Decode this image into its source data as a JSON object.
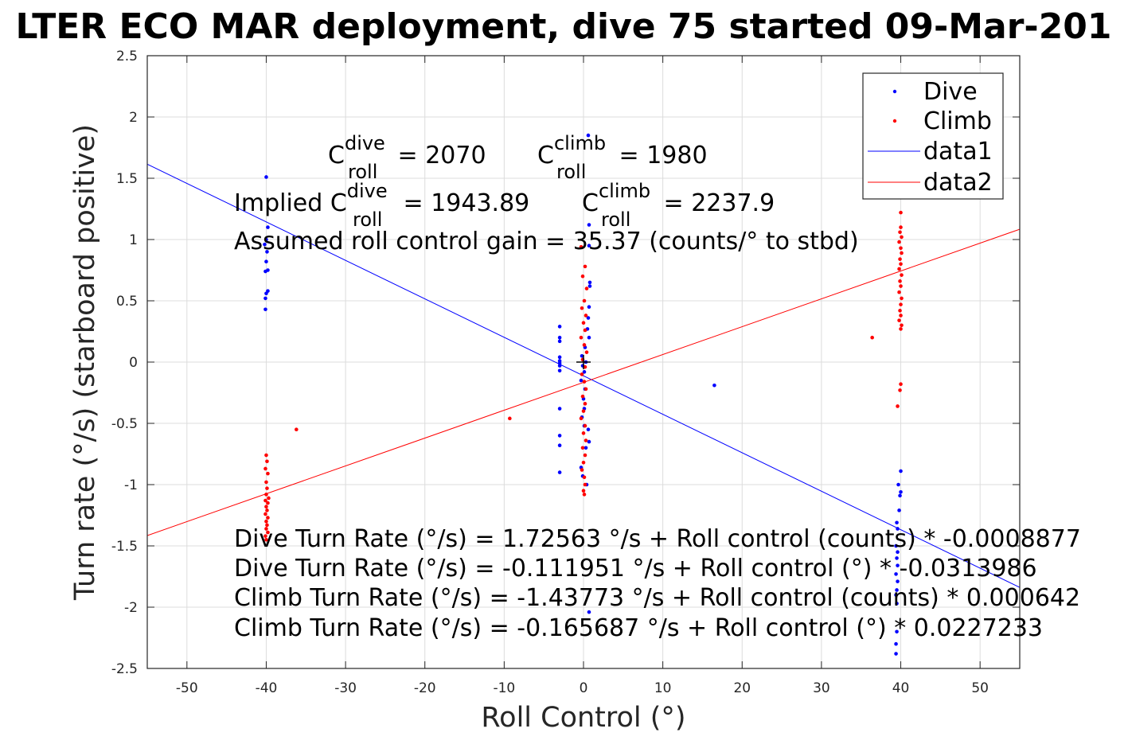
{
  "chart_data": {
    "type": "scatter",
    "title": "LTER ECO MAR deployment, dive 75 started 09-Mar-201",
    "xlabel": "Roll Control (°)",
    "ylabel": "Turn rate (°/s) (starboard positive)",
    "xlim": [
      -55,
      55
    ],
    "ylim": [
      -2.5,
      2.5
    ],
    "xticks": [
      -50,
      -40,
      -30,
      -20,
      -10,
      0,
      10,
      20,
      30,
      40,
      50
    ],
    "xtick_labels": [
      "-50",
      "-40",
      "-30",
      "-20",
      "-10",
      "0",
      "10",
      "20",
      "30",
      "40",
      "50"
    ],
    "yticks": [
      -2.5,
      -2,
      -1.5,
      -1,
      -0.5,
      0,
      0.5,
      1,
      1.5,
      2,
      2.5
    ],
    "ytick_labels": [
      "-2.5",
      "-2",
      "-1.5",
      "-1",
      "-0.5",
      "0",
      "0.5",
      "1",
      "1.5",
      "2",
      "2.5"
    ],
    "grid": true,
    "legend_position": "top-right",
    "legend": [
      "Dive",
      "Climb",
      "data1",
      "data2"
    ],
    "series": [
      {
        "name": "Dive",
        "kind": "points",
        "color": "#0000ff",
        "points": [
          [
            -40,
            1.51
          ],
          [
            -39.8,
            1.1
          ],
          [
            -40,
            1.0
          ],
          [
            -40.2,
            0.96
          ],
          [
            -39.9,
            0.9
          ],
          [
            -40,
            0.82
          ],
          [
            -39.8,
            0.75
          ],
          [
            -40.1,
            0.74
          ],
          [
            -39.8,
            0.58
          ],
          [
            -40,
            0.56
          ],
          [
            -40.1,
            0.52
          ],
          [
            -40.1,
            0.43
          ],
          [
            -3,
            0.29
          ],
          [
            -3,
            0.2
          ],
          [
            -3,
            0.17
          ],
          [
            -3,
            0.04
          ],
          [
            -3,
            0.01
          ],
          [
            -3,
            -0.01
          ],
          [
            -3,
            -0.03
          ],
          [
            -3,
            -0.07
          ],
          [
            -3,
            -0.38
          ],
          [
            -3,
            -0.6
          ],
          [
            -3,
            -0.68
          ],
          [
            -3,
            -0.9
          ],
          [
            0.6,
            1.85
          ],
          [
            0.7,
            1.12
          ],
          [
            0.7,
            0.95
          ],
          [
            0.8,
            0.65
          ],
          [
            0.8,
            0.62
          ],
          [
            0.7,
            0.45
          ],
          [
            0.6,
            0.36
          ],
          [
            0.5,
            0.27
          ],
          [
            0.7,
            0.2
          ],
          [
            0.2,
            0.12
          ],
          [
            -0.2,
            0.05
          ],
          [
            0.3,
            0.0
          ],
          [
            -0.1,
            -0.03
          ],
          [
            0.1,
            -0.08
          ],
          [
            -0.3,
            -0.15
          ],
          [
            0.2,
            -0.22
          ],
          [
            0,
            -0.3
          ],
          [
            0.1,
            -0.38
          ],
          [
            -0.2,
            -0.45
          ],
          [
            0.1,
            -0.52
          ],
          [
            0.6,
            -0.55
          ],
          [
            0.7,
            -0.65
          ],
          [
            0.3,
            -0.7
          ],
          [
            -0.3,
            -0.86
          ],
          [
            -0.1,
            -0.93
          ],
          [
            0.4,
            -1.0
          ],
          [
            0.7,
            -2.04
          ],
          [
            16.5,
            -0.19
          ],
          [
            40,
            -0.89
          ],
          [
            39.7,
            -1.0
          ],
          [
            40,
            -1.06
          ],
          [
            39.9,
            -1.09
          ],
          [
            39.8,
            -1.21
          ],
          [
            39.5,
            -1.31
          ],
          [
            39.6,
            -1.36
          ],
          [
            39.4,
            -1.5
          ],
          [
            39.6,
            -1.55
          ],
          [
            39.5,
            -1.6
          ],
          [
            39.6,
            -1.66
          ],
          [
            39.4,
            -1.73
          ],
          [
            39.6,
            -1.79
          ],
          [
            39.5,
            -1.86
          ],
          [
            39.4,
            -1.9
          ],
          [
            39.5,
            -1.97
          ],
          [
            39.5,
            -2.2
          ],
          [
            39.4,
            -2.3
          ],
          [
            39.4,
            -2.38
          ]
        ]
      },
      {
        "name": "Climb",
        "kind": "points",
        "color": "#ff0000",
        "points": [
          [
            -40,
            -0.76
          ],
          [
            -39.9,
            -0.81
          ],
          [
            -40.1,
            -0.87
          ],
          [
            -39.8,
            -0.91
          ],
          [
            -40,
            -0.98
          ],
          [
            -39.9,
            -1.03
          ],
          [
            -40,
            -1.08
          ],
          [
            -39.7,
            -1.11
          ],
          [
            -40.1,
            -1.13
          ],
          [
            -39.8,
            -1.15
          ],
          [
            -40,
            -1.18
          ],
          [
            -39.9,
            -1.21
          ],
          [
            -40.1,
            -1.24
          ],
          [
            -39.8,
            -1.27
          ],
          [
            -40,
            -1.3
          ],
          [
            -39.9,
            -1.33
          ],
          [
            -40,
            -1.36
          ],
          [
            -39.8,
            -1.39
          ],
          [
            -40.1,
            -1.42
          ],
          [
            -40,
            -1.45
          ],
          [
            -36.2,
            -0.55
          ],
          [
            -9.3,
            -0.46
          ],
          [
            -0.3,
            0.94
          ],
          [
            0.2,
            0.78
          ],
          [
            -0.1,
            0.7
          ],
          [
            0.4,
            0.6
          ],
          [
            0.1,
            0.5
          ],
          [
            -0.2,
            0.44
          ],
          [
            0.3,
            0.38
          ],
          [
            0,
            0.32
          ],
          [
            0.2,
            0.26
          ],
          [
            -0.3,
            0.2
          ],
          [
            0.1,
            0.14
          ],
          [
            0.4,
            0.08
          ],
          [
            -0.1,
            0.02
          ],
          [
            0.2,
            -0.04
          ],
          [
            -0.2,
            -0.1
          ],
          [
            0.1,
            -0.16
          ],
          [
            0.3,
            -0.22
          ],
          [
            -0.1,
            -0.28
          ],
          [
            0.2,
            -0.34
          ],
          [
            0,
            -0.4
          ],
          [
            -0.3,
            -0.46
          ],
          [
            0.2,
            -0.52
          ],
          [
            0,
            -0.58
          ],
          [
            0.3,
            -0.64
          ],
          [
            -0.1,
            -0.7
          ],
          [
            0.2,
            -0.76
          ],
          [
            0,
            -0.82
          ],
          [
            -0.2,
            -0.88
          ],
          [
            0.1,
            -0.94
          ],
          [
            0.2,
            -1.0
          ],
          [
            0,
            -1.05
          ],
          [
            0.1,
            -1.08
          ],
          [
            36.4,
            0.2
          ],
          [
            40,
            1.22
          ],
          [
            40,
            1.1
          ],
          [
            39.9,
            1.06
          ],
          [
            40.1,
            1.02
          ],
          [
            39.8,
            0.98
          ],
          [
            40,
            0.93
          ],
          [
            40.1,
            0.89
          ],
          [
            39.9,
            0.84
          ],
          [
            40,
            0.8
          ],
          [
            39.8,
            0.76
          ],
          [
            40.1,
            0.71
          ],
          [
            39.9,
            0.66
          ],
          [
            40,
            0.62
          ],
          [
            39.8,
            0.57
          ],
          [
            40.1,
            0.52
          ],
          [
            40,
            0.47
          ],
          [
            39.9,
            0.42
          ],
          [
            40,
            0.38
          ],
          [
            39.8,
            0.34
          ],
          [
            40.1,
            0.3
          ],
          [
            40,
            0.27
          ],
          [
            40,
            -0.18
          ],
          [
            39.9,
            -0.23
          ],
          [
            39.6,
            -0.36
          ]
        ]
      },
      {
        "name": "data1",
        "kind": "line",
        "color": "#0000ff",
        "intercept": -0.111951,
        "slope": -0.0313986
      },
      {
        "name": "data2",
        "kind": "line",
        "color": "#ff0000",
        "intercept": -0.165687,
        "slope": 0.0227233
      }
    ],
    "center_marker": {
      "x": 0,
      "y": 0,
      "color": "#000000"
    }
  },
  "annotations": {
    "c_dive_main": "C",
    "c_dive_sup": "dive",
    "c_dive_sub": "roll",
    "c_dive_value": " = 2070",
    "c_climb_main": "C",
    "c_climb_sup": "climb",
    "c_climb_sub": "roll",
    "c_climb_value": " = 1980",
    "implied_prefix": "Implied C",
    "implied_dive_sup": "dive",
    "implied_dive_sub": "roll",
    "implied_dive_value": " = 1943.89",
    "implied_climb_main": "C",
    "implied_climb_sup": "climb",
    "implied_climb_sub": "roll",
    "implied_climb_value": " = 2237.9",
    "gain_text": "Assumed roll control gain = 35.37 (counts/° to stbd)",
    "fit_lines": [
      "Dive Turn Rate (°/s) = 1.72563 °/s + Roll control (counts) * -0.0008877",
      "Dive Turn Rate (°/s) = -0.111951 °/s + Roll control (°) * -0.0313986",
      "Climb Turn Rate (°/s) = -1.43773 °/s + Roll control (counts) * 0.000642",
      "Climb Turn Rate (°/s) = -0.165687 °/s + Roll control (°) * 0.0227233"
    ]
  }
}
